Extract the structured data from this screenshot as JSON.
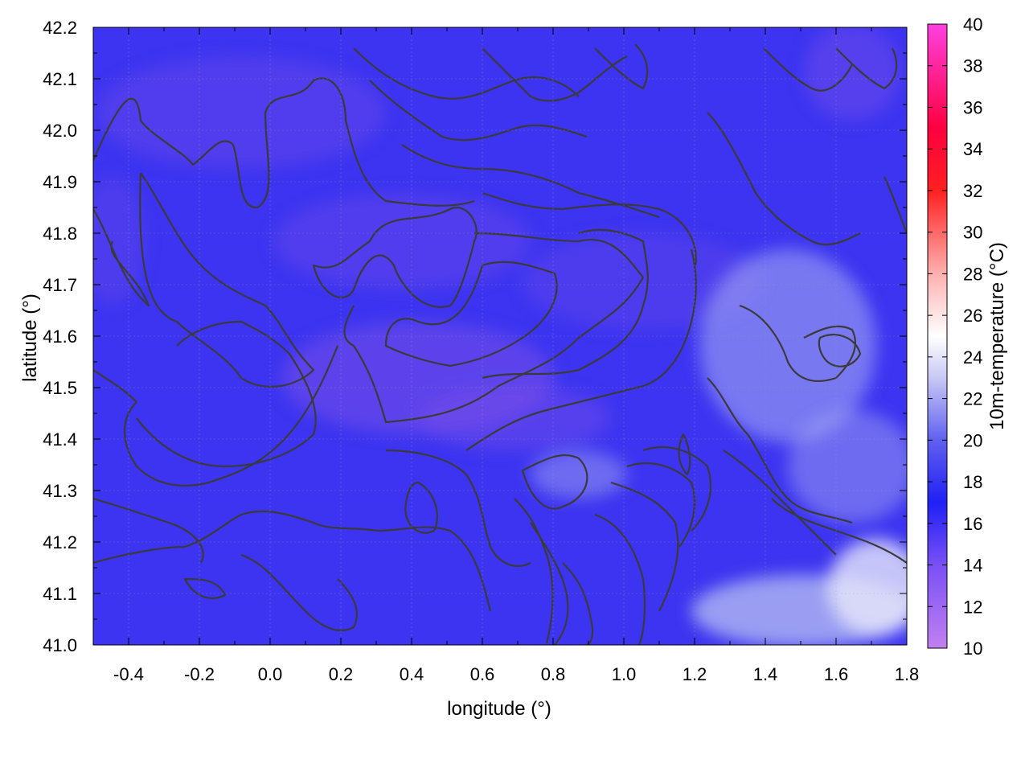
{
  "chart_data": {
    "type": "heatmap",
    "title": "",
    "xlabel": "longitude (°)",
    "ylabel": "latitude (°)",
    "colorbar_label": "10m-temperature (°C)",
    "xlim": [
      -0.5,
      1.8
    ],
    "ylim": [
      41.0,
      42.2
    ],
    "x_ticks": [
      "-0.4",
      "-0.2",
      "0.0",
      "0.2",
      "0.4",
      "0.6",
      "0.8",
      "1.0",
      "1.2",
      "1.4",
      "1.6",
      "1.8"
    ],
    "y_ticks": [
      "41.0",
      "41.1",
      "41.2",
      "41.3",
      "41.4",
      "41.5",
      "41.6",
      "41.7",
      "41.8",
      "41.9",
      "42.0",
      "42.1",
      "42.2"
    ],
    "colorbar_range": [
      10,
      40
    ],
    "colorbar_ticks": [
      "10",
      "12",
      "14",
      "16",
      "18",
      "20",
      "22",
      "24",
      "26",
      "28",
      "30",
      "32",
      "34",
      "36",
      "38",
      "40"
    ],
    "colorbar_stops": [
      {
        "value": 10,
        "color": "#c080f0"
      },
      {
        "value": 14,
        "color": "#7a50f5"
      },
      {
        "value": 17,
        "color": "#2020f5"
      },
      {
        "value": 20,
        "color": "#6060f0"
      },
      {
        "value": 23,
        "color": "#c8c8f5"
      },
      {
        "value": 25,
        "color": "#ffffff"
      },
      {
        "value": 28,
        "color": "#ffb0b0"
      },
      {
        "value": 32,
        "color": "#ff2020"
      },
      {
        "value": 35,
        "color": "#ff0040"
      },
      {
        "value": 40,
        "color": "#ff40e0"
      }
    ],
    "field_colors": {
      "base": "#3c34f0",
      "cool_region": "#7850e8",
      "warm_region": "#aab0f2",
      "contour": "#3a3a3a"
    },
    "grid": true
  }
}
